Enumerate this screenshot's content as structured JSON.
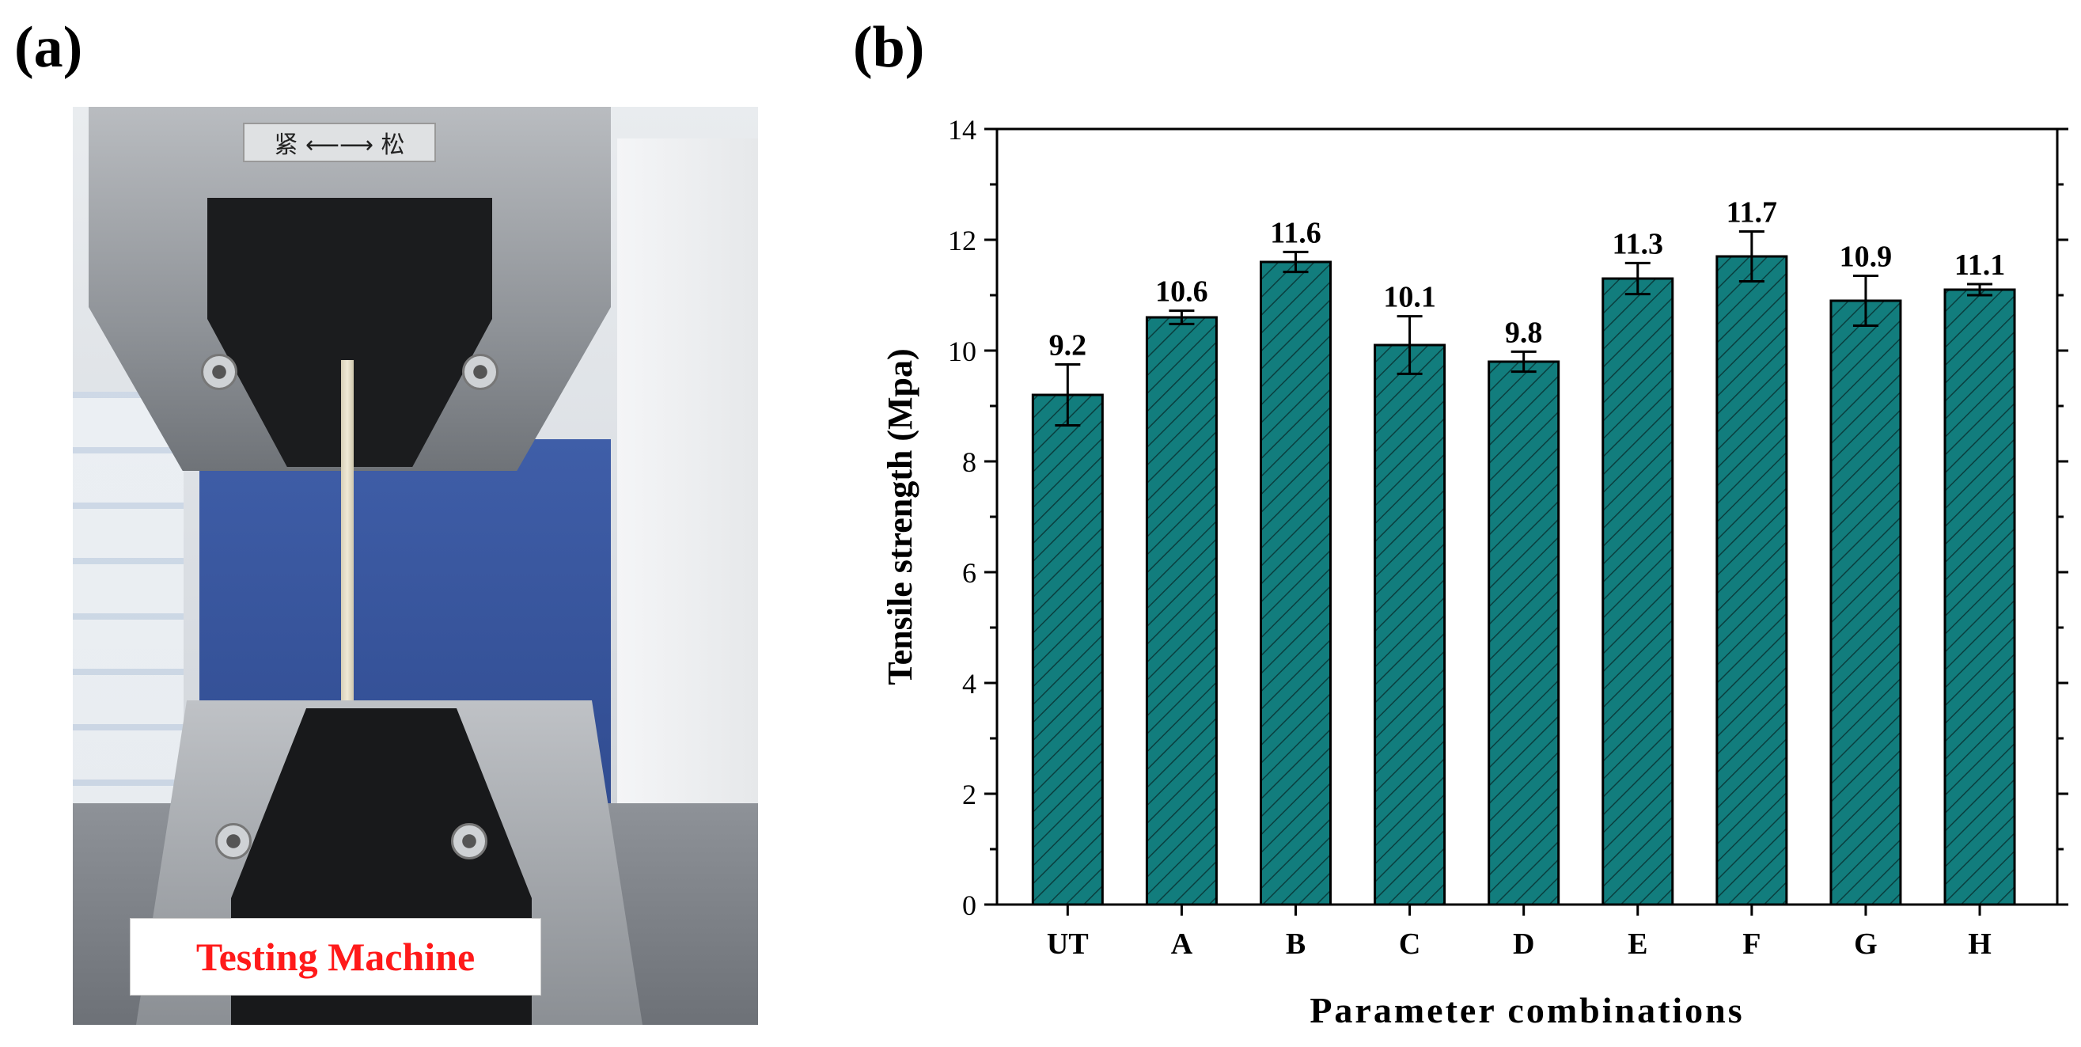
{
  "panels": {
    "a_label": "(a)",
    "b_label": "(b)"
  },
  "photo": {
    "caption": "Testing Machine",
    "plate_text": "紧 ⟵⟶ 松"
  },
  "colors": {
    "bar_fill": "#127d7d",
    "hatch": "#0a3f3f",
    "caption": "#ff1a1a"
  },
  "chart_data": {
    "type": "bar",
    "categories": [
      "UT",
      "A",
      "B",
      "C",
      "D",
      "E",
      "F",
      "G",
      "H"
    ],
    "values": [
      9.2,
      10.6,
      11.6,
      10.1,
      9.8,
      11.3,
      11.7,
      10.9,
      11.1
    ],
    "errors": [
      0.55,
      0.12,
      0.18,
      0.52,
      0.18,
      0.28,
      0.45,
      0.45,
      0.1
    ],
    "value_labels": [
      "9.2",
      "10.6",
      "11.6",
      "10.1",
      "9.8",
      "11.3",
      "11.7",
      "10.9",
      "11.1"
    ],
    "xlabel": "Parameter combinations",
    "ylabel": "Tensile strength (Mpa)",
    "ylim": [
      0,
      14
    ],
    "yticks": [
      "0",
      "2",
      "4",
      "6",
      "8",
      "10",
      "12",
      "14"
    ],
    "grid": false,
    "hatched": true
  }
}
